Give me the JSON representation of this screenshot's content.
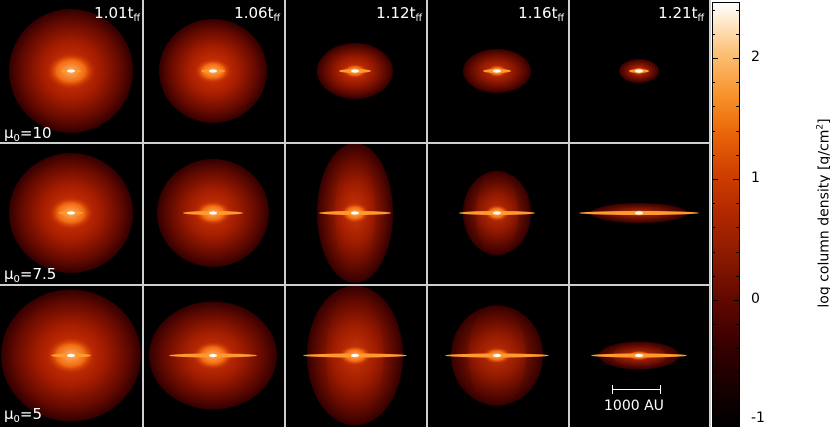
{
  "columns": [
    {
      "time": "1.01",
      "sub": "ff"
    },
    {
      "time": "1.06",
      "sub": "ff"
    },
    {
      "time": "1.12",
      "sub": "ff"
    },
    {
      "time": "1.16",
      "sub": "ff"
    },
    {
      "time": "1.21",
      "sub": "ff"
    }
  ],
  "rows": [
    {
      "mu_sub": "0",
      "mu_value": "=10"
    },
    {
      "mu_sub": "0",
      "mu_value": "=7.5"
    },
    {
      "mu_sub": "0",
      "mu_value": "=5"
    }
  ],
  "scalebar": {
    "label": "1000 AU"
  },
  "colorbar": {
    "title_main": "log column density [g/cm",
    "title_sup": "2",
    "title_end": "]",
    "ticks": [
      "2",
      "1",
      "0",
      "-1"
    ],
    "colors": [
      "#000000",
      "#620800",
      "#b02800",
      "#ec6a0a",
      "#fcbf74",
      "#ffffff"
    ]
  }
}
